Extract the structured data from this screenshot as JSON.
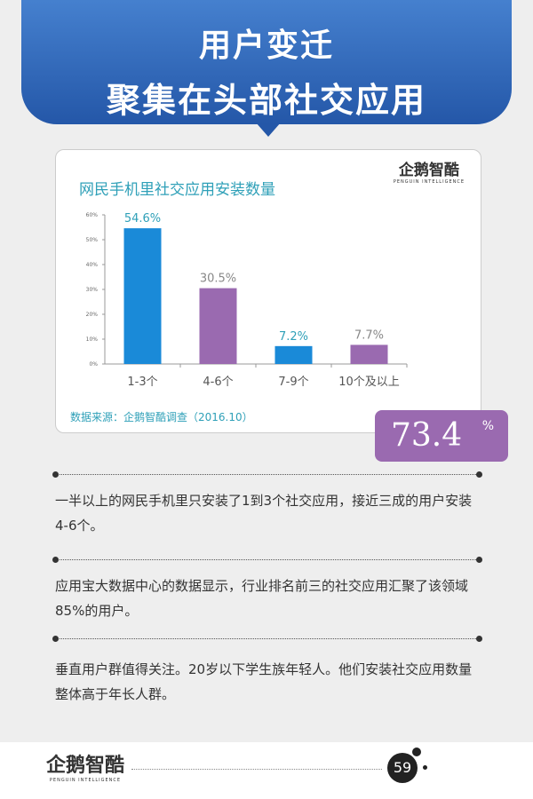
{
  "header": {
    "title_line1": "用户变迁",
    "title_line2": "聚集在头部社交应用"
  },
  "logo": {
    "main": "企鹅智酷",
    "sub": "PENGUIN INTELLIGENCE"
  },
  "chart_data": {
    "type": "bar",
    "title": "网民手机里社交应用安装数量",
    "categories": [
      "1-3个",
      "4-6个",
      "7-9个",
      "10个及以上"
    ],
    "values": [
      54.6,
      30.5,
      7.2,
      7.7
    ],
    "value_labels": [
      "54.6%",
      "30.5%",
      "7.2%",
      "7.7%"
    ],
    "colors": [
      "#1a8ad8",
      "#9a6ab0",
      "#1a8ad8",
      "#9a6ab0"
    ],
    "ylim": [
      0,
      60
    ],
    "yticks": [
      "0%",
      "10%",
      "20%",
      "30%",
      "40%",
      "50%",
      "60%"
    ],
    "grid": false,
    "source": "数据来源：企鹅智酷调查（2016.10）"
  },
  "highlight": {
    "value": "73.4",
    "unit": "%",
    "color": "#9a6ab0"
  },
  "paragraphs": [
    "一半以上的网民手机里只安装了1到3个社交应用，接近三成的用户安装4-6个。",
    "应用宝大数据中心的数据显示，行业排名前三的社交应用汇聚了该领域85%的用户。",
    "垂直用户群值得关注。20岁以下学生族年轻人。他们安装社交应用数量整体高于年长人群。"
  ],
  "footer": {
    "page_number": "59"
  }
}
